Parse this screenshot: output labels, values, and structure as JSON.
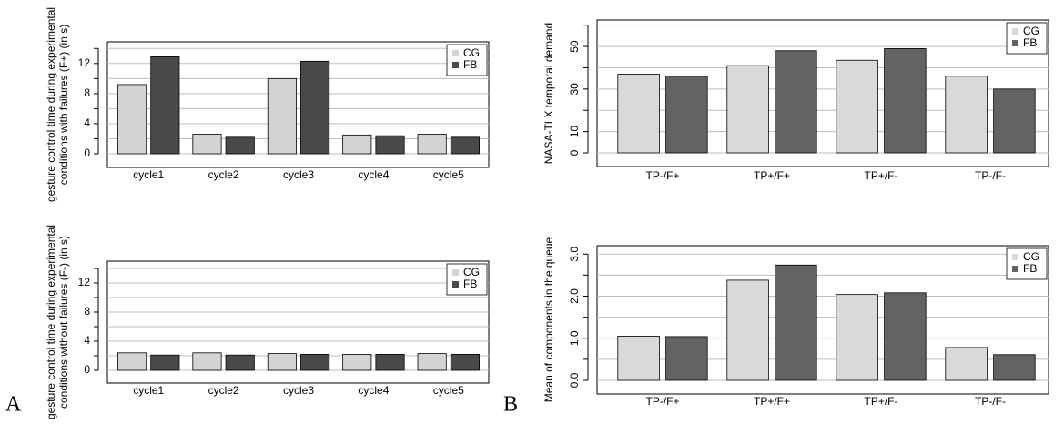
{
  "panel_labels": [
    "A",
    "B"
  ],
  "chart_data": [
    {
      "type": "bar",
      "y_label": [
        "gesture control time during experimental",
        "conditions with failures (F+) (in s)"
      ],
      "categories": [
        "cycle1",
        "cycle2",
        "cycle3",
        "cycle4",
        "cycle5"
      ],
      "series": [
        {
          "name": "CG",
          "color": "#d3d3d3",
          "values": [
            9.2,
            2.6,
            10.0,
            2.5,
            2.6
          ]
        },
        {
          "name": "FB",
          "color": "#4a4a4a",
          "values": [
            12.9,
            2.2,
            12.3,
            2.4,
            2.2
          ]
        }
      ],
      "ylim": [
        0,
        15
      ],
      "yticks": [
        0,
        4,
        8,
        12
      ],
      "minor_yticks": [
        2,
        6,
        10,
        14
      ],
      "grid": true,
      "legend": "topright",
      "rotate_ytick_labels": false
    },
    {
      "type": "bar",
      "y_label": [
        "gesture control time during experimental",
        "conditions without failures (F-) (in s)"
      ],
      "categories": [
        "cycle1",
        "cycle2",
        "cycle3",
        "cycle4",
        "cycle5"
      ],
      "series": [
        {
          "name": "CG",
          "color": "#d3d3d3",
          "values": [
            2.4,
            2.4,
            2.3,
            2.2,
            2.3
          ]
        },
        {
          "name": "FB",
          "color": "#4a4a4a",
          "values": [
            2.1,
            2.1,
            2.2,
            2.2,
            2.2
          ]
        }
      ],
      "ylim": [
        0,
        15
      ],
      "yticks": [
        0,
        4,
        8,
        12
      ],
      "minor_yticks": [
        2,
        6,
        10,
        14
      ],
      "grid": true,
      "legend": "topright",
      "rotate_ytick_labels": false
    },
    {
      "type": "bar",
      "y_label": [
        "NASA-TLX temporal demand"
      ],
      "categories": [
        "TP-/F+",
        "TP+/F+",
        "TP+/F-",
        "TP-/F-"
      ],
      "series": [
        {
          "name": "CG",
          "color": "#d9d9d9",
          "values": [
            37,
            41,
            43.5,
            36
          ]
        },
        {
          "name": "FB",
          "color": "#636363",
          "values": [
            36,
            48,
            49,
            30
          ]
        }
      ],
      "ylim": [
        0,
        62
      ],
      "yticks": [
        0,
        10,
        30,
        50
      ],
      "minor_yticks": [
        20,
        40,
        60
      ],
      "grid": true,
      "legend": "topright",
      "rotate_ytick_labels": true
    },
    {
      "type": "bar",
      "y_label": [
        "Mean of components in the queue"
      ],
      "categories": [
        "TP-/F+",
        "TP+/F+",
        "TP+/F-",
        "TP-/F-"
      ],
      "series": [
        {
          "name": "CG",
          "color": "#d9d9d9",
          "values": [
            1.05,
            2.38,
            2.04,
            0.78
          ]
        },
        {
          "name": "FB",
          "color": "#636363",
          "values": [
            1.04,
            2.74,
            2.08,
            0.61
          ]
        }
      ],
      "ylim": [
        0,
        3.2
      ],
      "yticks": [
        {
          "value": 0,
          "label": "0.0"
        },
        {
          "value": 1,
          "label": "1.0"
        },
        {
          "value": 2,
          "label": "2.0"
        },
        {
          "value": 3,
          "label": "3.0"
        }
      ],
      "minor_yticks": [
        0.5,
        1.5,
        2.5
      ],
      "grid": true,
      "legend": "topright",
      "rotate_ytick_labels": true
    }
  ]
}
